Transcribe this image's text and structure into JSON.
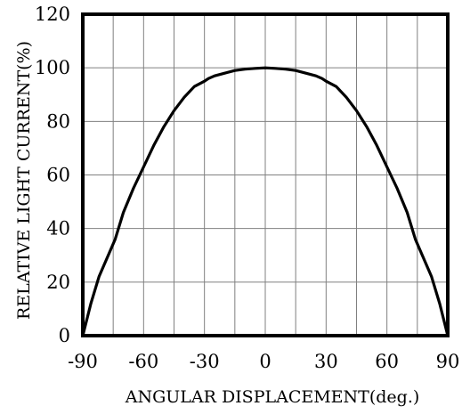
{
  "chart_data": {
    "type": "line",
    "title": "",
    "xlabel": "ANGULAR DISPLACEMENT(deg.)",
    "ylabel": "RELATIVE LIGHT CURRENT(%)",
    "xlim": [
      -90,
      90
    ],
    "ylim": [
      0,
      120
    ],
    "x_ticks": [
      "-90",
      "-60",
      "-30",
      "0",
      "30",
      "60",
      "90"
    ],
    "y_ticks": [
      "0",
      "20",
      "40",
      "60",
      "80",
      "100",
      "120"
    ],
    "grid": true,
    "series": [
      {
        "x": [
          -90,
          -86,
          -82,
          -78,
          -74,
          -70,
          -65,
          -60,
          -55,
          -50,
          -45,
          -40,
          -35,
          -30,
          -28,
          -25,
          -20,
          -15,
          -10,
          -5,
          0,
          5,
          10,
          15,
          20,
          25,
          28,
          30,
          35,
          40,
          45,
          50,
          55,
          60,
          65,
          70,
          74,
          78,
          82,
          86,
          90
        ],
        "y": [
          0,
          12,
          22,
          29,
          36,
          46,
          55,
          63,
          71,
          78,
          84,
          89,
          93,
          95,
          96,
          97,
          98,
          99,
          99.5,
          99.8,
          100,
          99.8,
          99.5,
          99,
          98,
          97,
          96,
          95,
          93,
          89,
          84,
          78,
          71,
          63,
          55,
          46,
          36,
          29,
          22,
          12,
          0
        ]
      }
    ],
    "colors": {
      "line": "#000000",
      "grid": "#808080",
      "frame": "#000000"
    }
  }
}
